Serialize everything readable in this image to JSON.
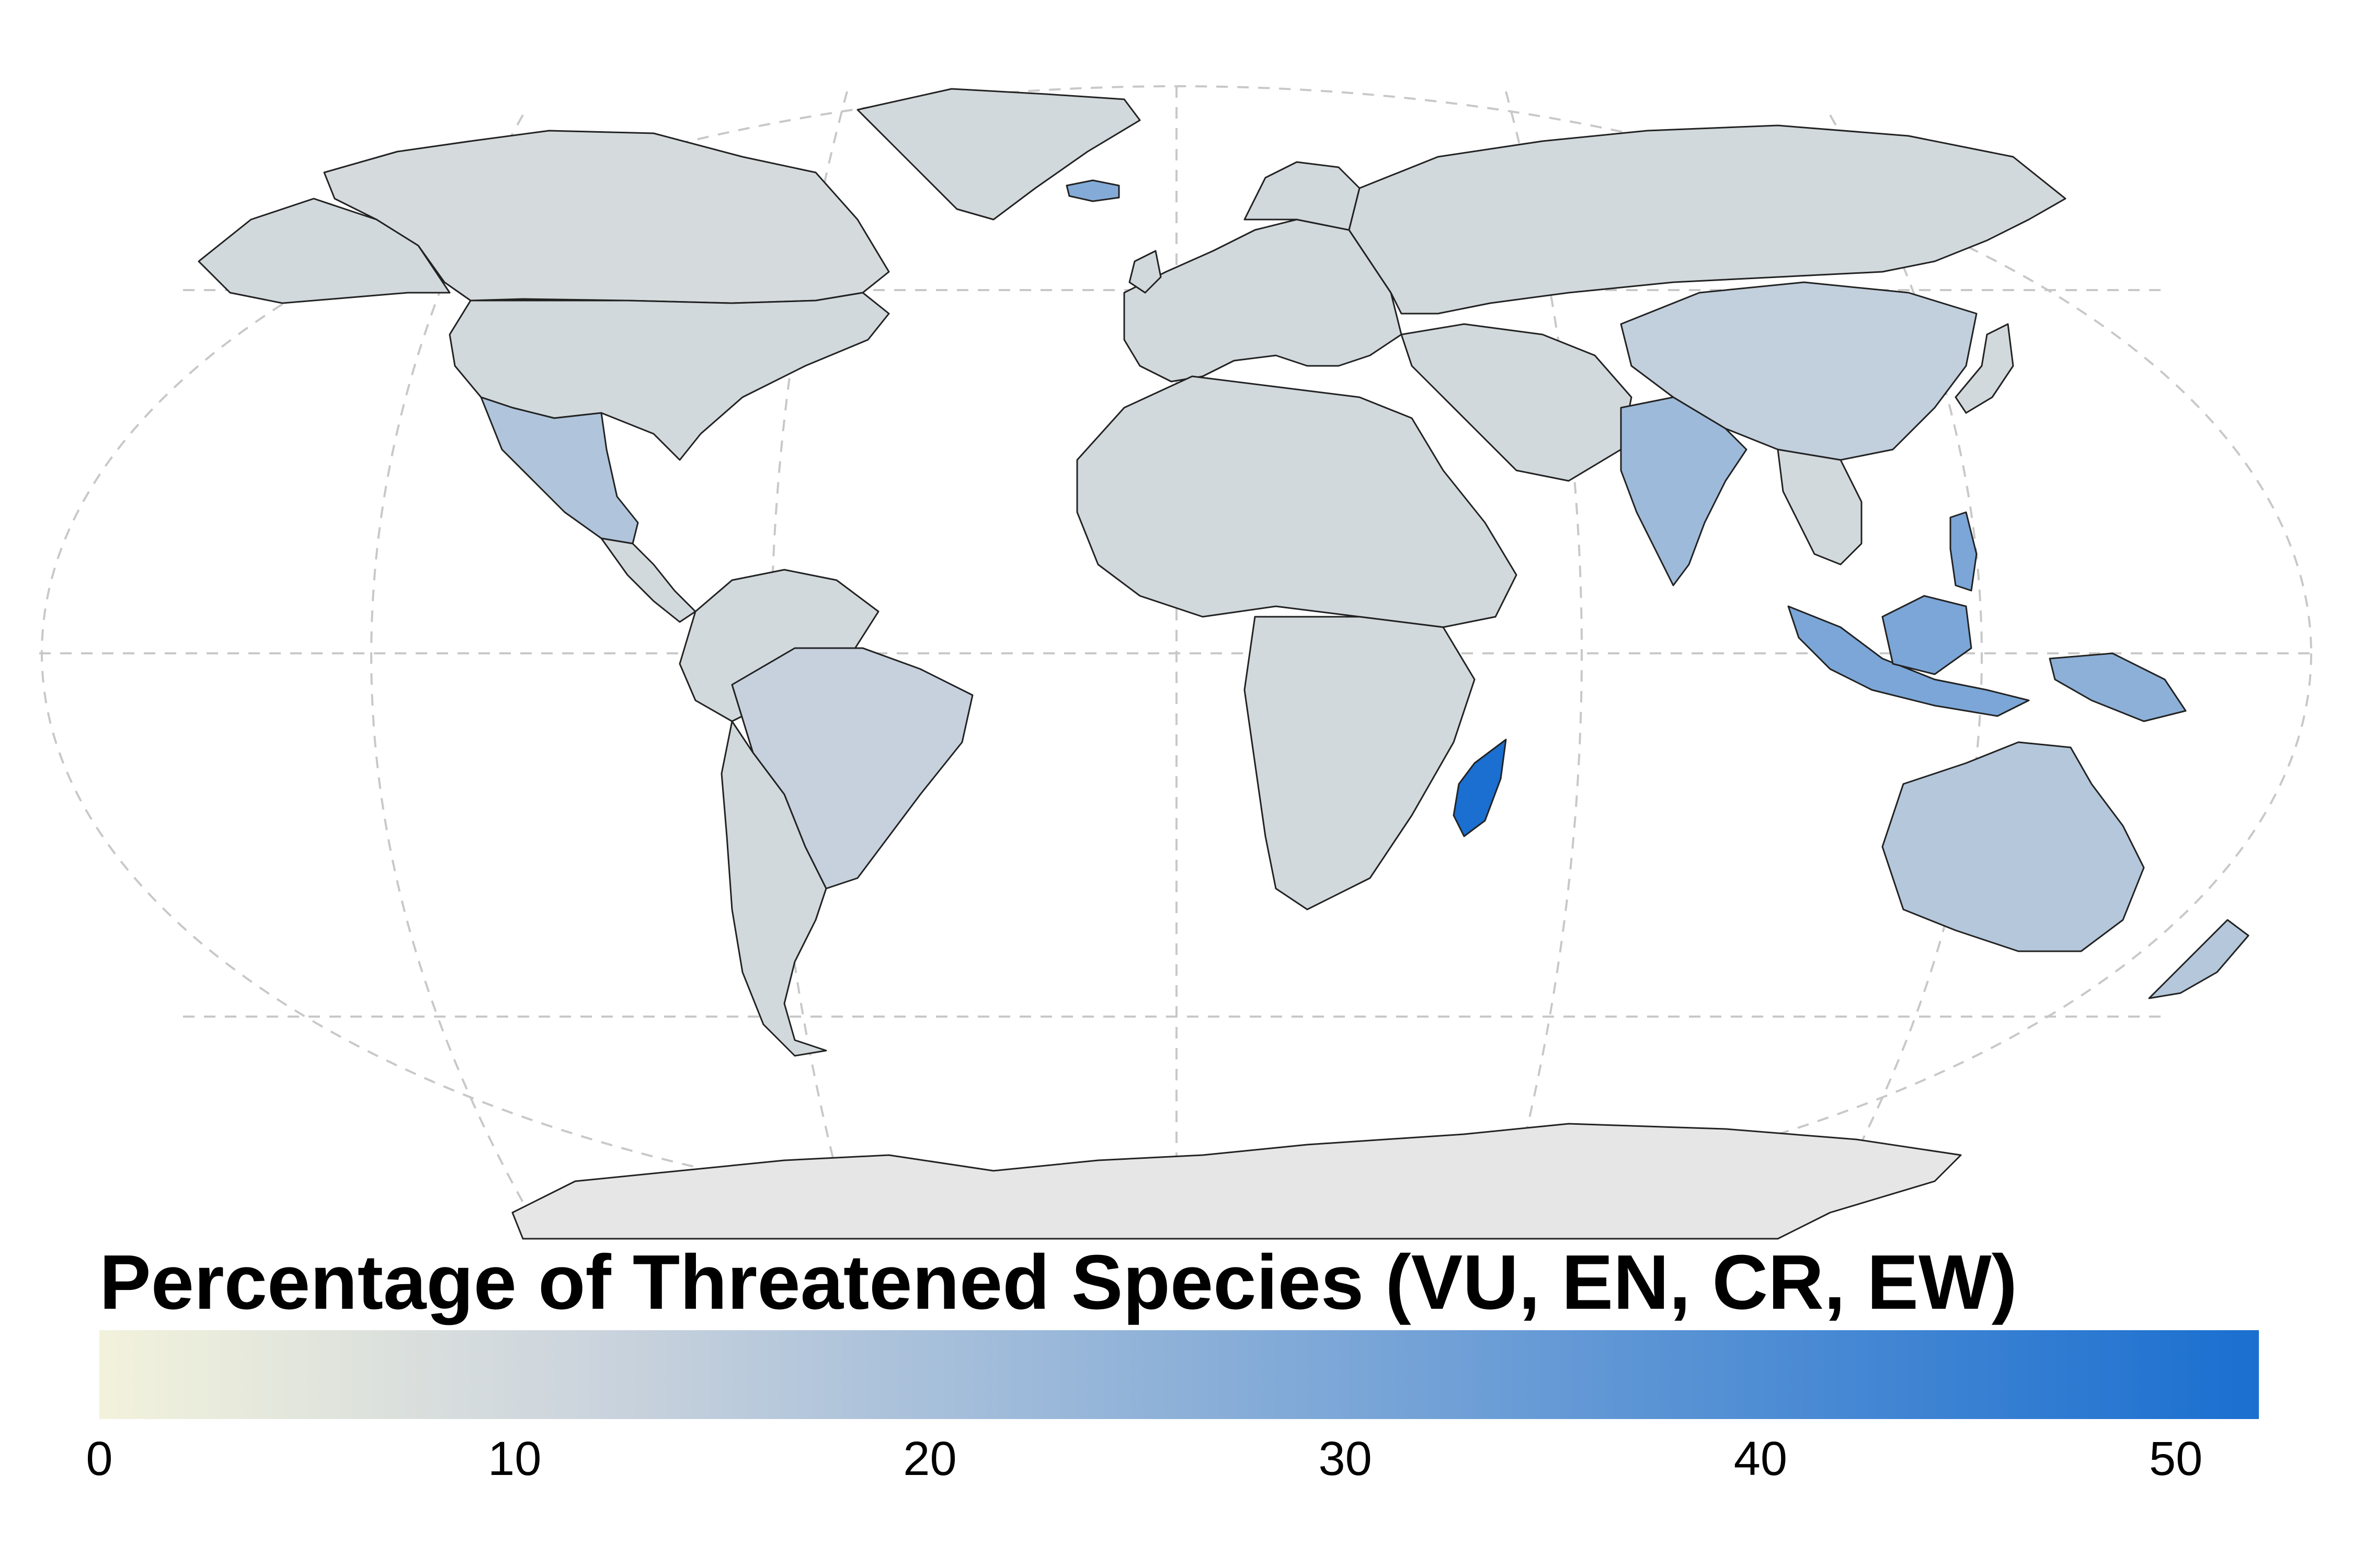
{
  "legend": {
    "title": "Percentage of Threatened Species (VU, EN, CR, EW)",
    "min": 0,
    "max": 52,
    "ticks": [
      0,
      10,
      20,
      30,
      40,
      50
    ],
    "colors": {
      "low": "#f2f2dc",
      "mid": "#cdd5dd",
      "high": "#1a6fd0"
    }
  },
  "map": {
    "projection": "robinson",
    "graticule": true,
    "ocean_color": "#ffffff",
    "graticule_color": "#c8c8c8",
    "antarctica_color": "#e6e6e6",
    "regions": [
      {
        "name": "Madagascar",
        "value": 52
      },
      {
        "name": "Indonesia",
        "value": 30
      },
      {
        "name": "India",
        "value": 22
      },
      {
        "name": "Papua New Guinea",
        "value": 26
      },
      {
        "name": "Australia",
        "value": 17
      },
      {
        "name": "Brazil",
        "value": 13
      },
      {
        "name": "Mexico",
        "value": 18
      },
      {
        "name": "United States",
        "value": 10
      },
      {
        "name": "Canada",
        "value": 9
      },
      {
        "name": "Russia",
        "value": 10
      },
      {
        "name": "China",
        "value": 14
      },
      {
        "name": "Iceland",
        "value": 28
      }
    ]
  }
}
